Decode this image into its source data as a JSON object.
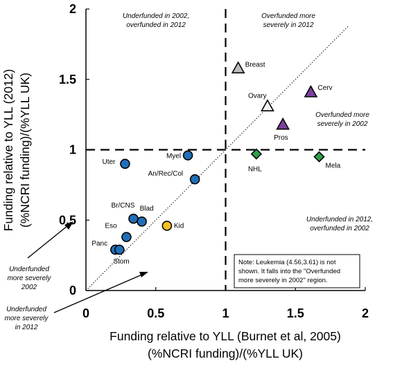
{
  "chart_data": {
    "type": "scatter",
    "title": "",
    "xlabel_lines": [
      "Funding relative to YLL (Burnet et al, 2005)",
      "(%NCRI funding)/(%YLL UK)"
    ],
    "ylabel_lines": [
      "Funding relative to YLL (2012)",
      "(%NCRI funding)/(%YLL UK)"
    ],
    "xlim": [
      0,
      2
    ],
    "ylim": [
      0,
      2
    ],
    "xticks": [
      "0",
      "0.5",
      "1",
      "1.5",
      "2"
    ],
    "yticks": [
      "0",
      "0.5",
      "1",
      "1.5",
      "2"
    ],
    "x_tick_values": [
      0,
      0.5,
      1,
      1.5,
      2
    ],
    "y_tick_values": [
      0,
      0.5,
      1,
      1.5,
      2
    ],
    "reference_lines": {
      "vertical_x": 1,
      "horizontal_y": 1,
      "diagonal": "y = x"
    },
    "colors": {
      "circle_blue": "#1f6fb8",
      "circle_yellow": "#f7c023",
      "triangle_grey": "#bdbdbd",
      "triangle_white": "#f2f2f2",
      "triangle_purple": "#7b3f9e",
      "diamond_green": "#2ea04a"
    },
    "points": [
      {
        "label": "Breast",
        "x": 1.09,
        "y": 1.58,
        "shape": "triangle",
        "color": "triangle_grey"
      },
      {
        "label": "Ovary",
        "x": 1.3,
        "y": 1.31,
        "shape": "triangle",
        "color": "triangle_white"
      },
      {
        "label": "Cerv",
        "x": 1.61,
        "y": 1.41,
        "shape": "triangle",
        "color": "triangle_purple"
      },
      {
        "label": "Pros",
        "x": 1.41,
        "y": 1.18,
        "shape": "triangle",
        "color": "triangle_purple"
      },
      {
        "label": "NHL",
        "x": 1.22,
        "y": 0.97,
        "shape": "diamond",
        "color": "diamond_green"
      },
      {
        "label": "Mela",
        "x": 1.67,
        "y": 0.95,
        "shape": "diamond",
        "color": "diamond_green"
      },
      {
        "label": "Myel",
        "x": 0.73,
        "y": 0.96,
        "shape": "circle",
        "color": "circle_blue"
      },
      {
        "label": "Uter",
        "x": 0.28,
        "y": 0.9,
        "shape": "circle",
        "color": "circle_blue"
      },
      {
        "label": "An/Rec/Col",
        "x": 0.78,
        "y": 0.79,
        "shape": "circle",
        "color": "circle_blue"
      },
      {
        "label": "Br/CNS",
        "x": 0.34,
        "y": 0.51,
        "shape": "circle",
        "color": "circle_blue"
      },
      {
        "label": "Blad",
        "x": 0.4,
        "y": 0.49,
        "shape": "circle",
        "color": "circle_blue"
      },
      {
        "label": "Kid",
        "x": 0.58,
        "y": 0.46,
        "shape": "circle",
        "color": "circle_yellow"
      },
      {
        "label": "Eso",
        "x": 0.29,
        "y": 0.38,
        "shape": "circle",
        "color": "circle_blue"
      },
      {
        "label": "Panc",
        "x": 0.21,
        "y": 0.29,
        "shape": "circle",
        "color": "circle_blue"
      },
      {
        "label": "Stom",
        "x": 0.24,
        "y": 0.29,
        "shape": "circle",
        "color": "circle_blue"
      }
    ],
    "annotations": {
      "top_left": [
        "Underfunded in 2002,",
        "overfunded in 2012"
      ],
      "top_right": [
        "Overfunded more",
        "severely in 2012"
      ],
      "mid_right": [
        "Overfunded more",
        "severely in 2002"
      ],
      "bottom_right": [
        "Underfunded in 2012,",
        "overfunded in 2002"
      ],
      "left_upper": [
        "Underfunded",
        "more severely",
        "2002"
      ],
      "left_lower": [
        "Underfunded",
        "more severely",
        "in 2012"
      ],
      "note": [
        "Note: Leukemia (4.56,3.61) is not",
        "shown. It falls into the \"Overfunded",
        "more severely in 2002\" region."
      ]
    }
  }
}
